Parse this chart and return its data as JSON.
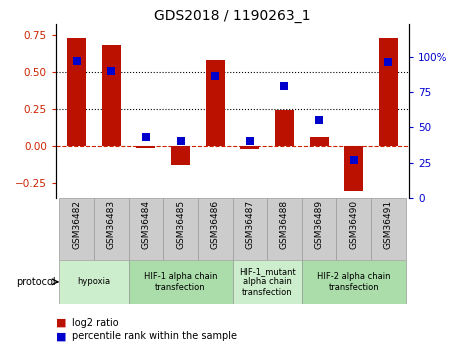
{
  "title": "GDS2018 / 1190263_1",
  "samples": [
    "GSM36482",
    "GSM36483",
    "GSM36484",
    "GSM36485",
    "GSM36486",
    "GSM36487",
    "GSM36488",
    "GSM36489",
    "GSM36490",
    "GSM36491"
  ],
  "log2_ratio": [
    0.73,
    0.68,
    -0.01,
    -0.13,
    0.58,
    -0.02,
    0.24,
    0.06,
    -0.3,
    0.73
  ],
  "percentile_rank": [
    97,
    90,
    43,
    40,
    86,
    40,
    79,
    55,
    27,
    96
  ],
  "bar_color": "#bb1100",
  "dot_color": "#0000cc",
  "ylim_left": [
    -0.35,
    0.82
  ],
  "ylim_right": [
    0,
    123
  ],
  "yticks_left": [
    -0.25,
    0.0,
    0.25,
    0.5,
    0.75
  ],
  "yticks_right": [
    0,
    25,
    50,
    75,
    100
  ],
  "hline_dotted": [
    0.25,
    0.5
  ],
  "hline_zero_color": "#cc2200",
  "protocols": [
    {
      "label": "hypoxia",
      "start": 0,
      "end": 1,
      "color": "#cceecc"
    },
    {
      "label": "HIF-1 alpha chain\ntransfection",
      "start": 2,
      "end": 4,
      "color": "#aaddaa"
    },
    {
      "label": "HIF-1_mutant\nalpha chain\ntransfection",
      "start": 5,
      "end": 6,
      "color": "#cceecc"
    },
    {
      "label": "HIF-2 alpha chain\ntransfection",
      "start": 7,
      "end": 9,
      "color": "#aaddaa"
    }
  ],
  "protocol_label": "protocol",
  "legend_log2_label": "log2 ratio",
  "legend_pct_label": "percentile rank within the sample",
  "bar_width": 0.55,
  "dot_size": 40,
  "bg_color": "#ffffff",
  "tick_color_left": "#cc2200",
  "tick_color_right": "#0000cc",
  "label_box_color": "#cccccc",
  "label_box_edge": "#999999"
}
